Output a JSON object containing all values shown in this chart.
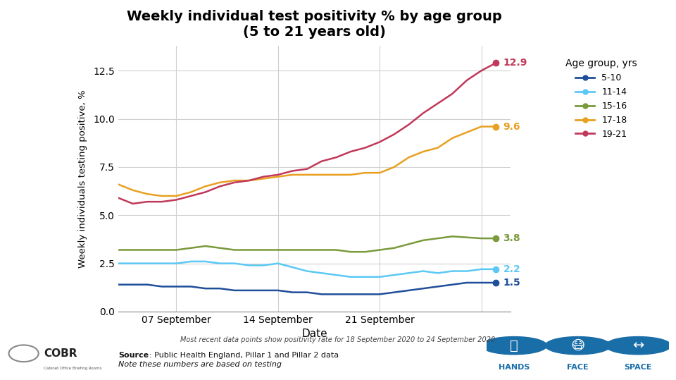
{
  "title": "Weekly individual test positivity % by age group\n(5 to 21 years old)",
  "xlabel": "Date",
  "ylabel": "Weekly individuals testing positive, %",
  "legend_title": "Age group, yrs",
  "source_bold": "Source",
  "source_rest": ": Public Health England, Pillar 1 and Pillar 2 data",
  "note_text": "Note these numbers are based on testing",
  "footnote": "Most recent data points show positivity rate for 18 September 2020 to 24 September 2020",
  "xlim": [
    0,
    27
  ],
  "ylim": [
    0.0,
    13.8
  ],
  "yticks": [
    0.0,
    2.5,
    5.0,
    7.5,
    10.0,
    12.5
  ],
  "xtick_positions": [
    4,
    11,
    18,
    25
  ],
  "xtick_labels": [
    "07 September",
    "14 September",
    "21 September",
    ""
  ],
  "series": {
    "5-10": {
      "color": "#1f4e9a",
      "x": [
        0,
        1,
        2,
        3,
        4,
        5,
        6,
        7,
        8,
        9,
        10,
        11,
        12,
        13,
        14,
        15,
        16,
        17,
        18,
        19,
        20,
        21,
        22,
        23,
        24,
        25,
        26
      ],
      "y": [
        1.4,
        1.4,
        1.4,
        1.3,
        1.3,
        1.3,
        1.2,
        1.2,
        1.1,
        1.1,
        1.1,
        1.1,
        1.0,
        1.0,
        0.9,
        0.9,
        0.9,
        0.9,
        0.9,
        1.0,
        1.1,
        1.2,
        1.3,
        1.4,
        1.5,
        1.5,
        1.5
      ],
      "end_label": "1.5",
      "end_label_color": "#1f4e9a"
    },
    "11-14": {
      "color": "#5bc8f5",
      "x": [
        0,
        1,
        2,
        3,
        4,
        5,
        6,
        7,
        8,
        9,
        10,
        11,
        12,
        13,
        14,
        15,
        16,
        17,
        18,
        19,
        20,
        21,
        22,
        23,
        24,
        25,
        26
      ],
      "y": [
        2.5,
        2.5,
        2.5,
        2.5,
        2.5,
        2.6,
        2.6,
        2.5,
        2.5,
        2.4,
        2.4,
        2.5,
        2.3,
        2.1,
        2.0,
        1.9,
        1.8,
        1.8,
        1.8,
        1.9,
        2.0,
        2.1,
        2.0,
        2.1,
        2.1,
        2.2,
        2.2
      ],
      "end_label": "2.2",
      "end_label_color": "#5bc8f5"
    },
    "15-16": {
      "color": "#7a9a3c",
      "x": [
        0,
        1,
        2,
        3,
        4,
        5,
        6,
        7,
        8,
        9,
        10,
        11,
        12,
        13,
        14,
        15,
        16,
        17,
        18,
        19,
        20,
        21,
        22,
        23,
        24,
        25,
        26
      ],
      "y": [
        3.2,
        3.2,
        3.2,
        3.2,
        3.2,
        3.3,
        3.4,
        3.3,
        3.2,
        3.2,
        3.2,
        3.2,
        3.2,
        3.2,
        3.2,
        3.2,
        3.1,
        3.1,
        3.2,
        3.3,
        3.5,
        3.7,
        3.8,
        3.9,
        3.85,
        3.8,
        3.8
      ],
      "end_label": "3.8",
      "end_label_color": "#7a9a3c"
    },
    "17-18": {
      "color": "#e8a020",
      "x": [
        0,
        1,
        2,
        3,
        4,
        5,
        6,
        7,
        8,
        9,
        10,
        11,
        12,
        13,
        14,
        15,
        16,
        17,
        18,
        19,
        20,
        21,
        22,
        23,
        24,
        25,
        26
      ],
      "y": [
        6.6,
        6.3,
        6.1,
        6.0,
        6.0,
        6.2,
        6.5,
        6.7,
        6.8,
        6.8,
        6.9,
        7.0,
        7.1,
        7.1,
        7.1,
        7.1,
        7.1,
        7.2,
        7.2,
        7.5,
        8.0,
        8.3,
        8.5,
        9.0,
        9.3,
        9.6,
        9.6
      ],
      "end_label": "9.6",
      "end_label_color": "#e8a020"
    },
    "19-21": {
      "color": "#c0385a",
      "x": [
        0,
        1,
        2,
        3,
        4,
        5,
        6,
        7,
        8,
        9,
        10,
        11,
        12,
        13,
        14,
        15,
        16,
        17,
        18,
        19,
        20,
        21,
        22,
        23,
        24,
        25,
        26
      ],
      "y": [
        5.9,
        5.6,
        5.7,
        5.7,
        5.8,
        6.0,
        6.2,
        6.5,
        6.7,
        6.8,
        7.0,
        7.1,
        7.3,
        7.4,
        7.8,
        8.0,
        8.3,
        8.5,
        8.8,
        9.2,
        9.7,
        10.3,
        10.8,
        11.3,
        12.0,
        12.5,
        12.9
      ],
      "end_label": "12.9",
      "end_label_color": "#c0385a"
    }
  },
  "dot_x_idx": 26,
  "background_color": "#ffffff",
  "grid_color": "#d0d0d0",
  "series_order": [
    "5-10",
    "11-14",
    "15-16",
    "17-18",
    "19-21"
  ]
}
